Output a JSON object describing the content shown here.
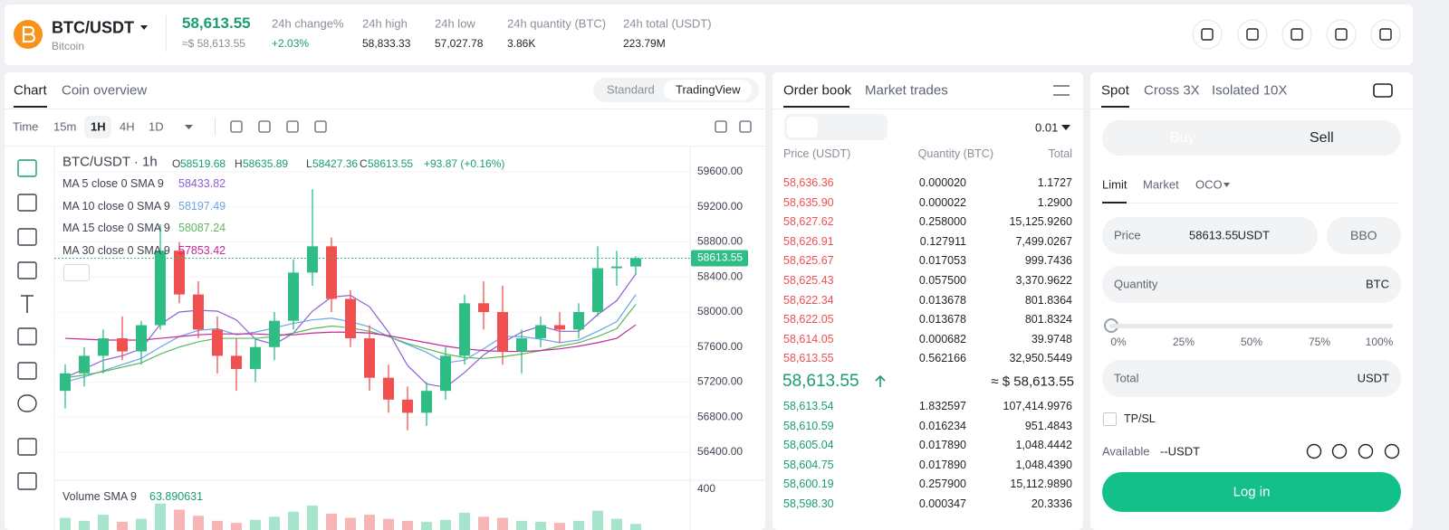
{
  "header": {
    "symbol": "BTC/USDT",
    "name": "Bitcoin",
    "price": "58,613.55",
    "price_usd": "≈$ 58,613.55",
    "stats": [
      {
        "label": "24h change%",
        "value": "+2.03%"
      },
      {
        "label": "24h high",
        "value": "58,833.33"
      },
      {
        "label": "24h low",
        "value": "57,027.78"
      },
      {
        "label": "24h quantity (BTC)",
        "value": "3.86K"
      },
      {
        "label": "24h total (USDT)",
        "value": "223.79M"
      }
    ]
  },
  "chart_panel": {
    "tabs": [
      "Chart",
      "Coin overview"
    ],
    "views": [
      "Standard",
      "TradingView"
    ],
    "intervals": [
      "Time",
      "15m",
      "1H",
      "4H",
      "1D"
    ],
    "legend_title": "BTC/USDT · 1h",
    "ohlc": [
      {
        "label": "O",
        "value": "58519.68"
      },
      {
        "label": "H",
        "value": "58635.89"
      },
      {
        "label": "L",
        "value": "58427.36"
      },
      {
        "label": "C",
        "value": "58613.55"
      }
    ],
    "change": "+93.87 (+0.16%)",
    "volume_label": "Volume SMA 9",
    "volume_value": "63.890631"
  },
  "chart_data": {
    "type": "candlestick",
    "ylim": [
      56090,
      59889
    ],
    "yticks": [
      {
        "value": 56400,
        "label": "56400.00"
      },
      {
        "value": 56800,
        "label": "56800.00"
      },
      {
        "value": 57200,
        "label": "57200.00"
      },
      {
        "value": 57600,
        "label": "57600.00"
      },
      {
        "value": 58000,
        "label": "58000.00"
      },
      {
        "value": 58400,
        "label": "58400.00"
      },
      {
        "value": 58800,
        "label": "58800.00"
      },
      {
        "value": 59200,
        "label": "59200.00"
      },
      {
        "value": 59600,
        "label": "59600.00"
      }
    ],
    "last_price": 58613.55,
    "up_color": "#2ebd85",
    "down_color": "#f0504f",
    "open": [
      57100,
      57300,
      57500,
      57700,
      57550,
      57850,
      58700,
      58200,
      57800,
      57500,
      57350,
      57600,
      57900,
      58450,
      58750,
      58150,
      57700,
      57250,
      57000,
      56850,
      57100,
      57500,
      58100,
      58000,
      57550,
      57700,
      57850,
      57800,
      58000,
      58500,
      58519.68
    ],
    "high": [
      57400,
      57600,
      57800,
      57950,
      57900,
      59000,
      58800,
      58350,
      57950,
      57700,
      57700,
      58000,
      58600,
      59400,
      58850,
      58250,
      57850,
      57400,
      57150,
      57200,
      57600,
      58200,
      58350,
      58300,
      57800,
      57950,
      58000,
      58100,
      58750,
      58700,
      58635.89
    ],
    "low": [
      56900,
      57150,
      57300,
      57450,
      57400,
      57800,
      58100,
      57700,
      57300,
      57100,
      57200,
      57450,
      57800,
      58300,
      58000,
      57600,
      57100,
      56850,
      56650,
      56700,
      57000,
      57400,
      57800,
      57400,
      57300,
      57600,
      57650,
      57700,
      57950,
      58300,
      58427.36
    ],
    "close": [
      57300,
      57500,
      57700,
      57550,
      57850,
      58700,
      58200,
      57800,
      57500,
      57350,
      57600,
      57900,
      58450,
      58750,
      58150,
      57700,
      57250,
      57000,
      56850,
      57100,
      57500,
      58100,
      58000,
      57550,
      57700,
      57850,
      57800,
      58000,
      58500,
      58519.68,
      58613.55
    ],
    "series": [
      {
        "name": "MA 5 close 0 SMA 9",
        "legend_value": "58433.82",
        "color": "#8b5fd8",
        "values": [
          57250,
          57350,
          57450,
          57500,
          57580,
          57860,
          58000,
          58020,
          58010,
          57910,
          57690,
          57630,
          57760,
          58010,
          58170,
          58190,
          58060,
          57770,
          57390,
          57180,
          57140,
          57310,
          57510,
          57650,
          57770,
          57840,
          57780,
          57780,
          57970,
          58130,
          58433.82
        ]
      },
      {
        "name": "MA 10 close 0 SMA 9",
        "legend_value": "58197.49",
        "color": "#6aa5e8",
        "values": [
          57200,
          57260,
          57330,
          57400,
          57470,
          57600,
          57720,
          57790,
          57810,
          57740,
          57770,
          57820,
          57870,
          57910,
          57930,
          57890,
          57830,
          57720,
          57630,
          57540,
          57420,
          57450,
          57580,
          57720,
          57720,
          57690,
          57650,
          57680,
          57780,
          57890,
          58197.49
        ]
      },
      {
        "name": "MA 15 close 0 SMA 9",
        "legend_value": "58087.24",
        "color": "#5cb85c",
        "values": [
          57250,
          57280,
          57320,
          57370,
          57420,
          57520,
          57600,
          57660,
          57700,
          57700,
          57700,
          57720,
          57760,
          57810,
          57840,
          57820,
          57780,
          57720,
          57640,
          57580,
          57520,
          57480,
          57470,
          57490,
          57520,
          57560,
          57610,
          57650,
          57720,
          57810,
          58087.24
        ]
      },
      {
        "name": "MA 30 close 0 SMA 9",
        "legend_value": "57853.42",
        "color": "#c4289a",
        "values": [
          57700,
          57690,
          57680,
          57680,
          57680,
          57700,
          57720,
          57740,
          57750,
          57750,
          57750,
          57740,
          57740,
          57760,
          57770,
          57770,
          57760,
          57730,
          57690,
          57650,
          57610,
          57580,
          57560,
          57550,
          57550,
          57560,
          57580,
          57610,
          57650,
          57700,
          57853.42
        ]
      }
    ],
    "volume": {
      "ylim": [
        0,
        480
      ],
      "yticks": [
        400
      ],
      "values": [
        120,
        90,
        150,
        80,
        110,
        260,
        200,
        140,
        90,
        70,
        100,
        130,
        180,
        240,
        160,
        120,
        150,
        110,
        90,
        80,
        100,
        170,
        130,
        120,
        90,
        80,
        70,
        90,
        190,
        110,
        60
      ]
    }
  },
  "order_book": {
    "tabs": [
      "Order book",
      "Market trades"
    ],
    "step": "0.01",
    "columns": [
      "Price (USDT)",
      "Quantity (BTC)",
      "Total"
    ],
    "asks": [
      [
        "58,636.36",
        "0.000020",
        "1.1727"
      ],
      [
        "58,635.90",
        "0.000022",
        "1.2900"
      ],
      [
        "58,627.62",
        "0.258000",
        "15,125.9260"
      ],
      [
        "58,626.91",
        "0.127911",
        "7,499.0267"
      ],
      [
        "58,625.67",
        "0.017053",
        "999.7436"
      ],
      [
        "58,625.43",
        "0.057500",
        "3,370.9622"
      ],
      [
        "58,622.34",
        "0.013678",
        "801.8364"
      ],
      [
        "58,622.05",
        "0.013678",
        "801.8324"
      ],
      [
        "58,614.05",
        "0.000682",
        "39.9748"
      ],
      [
        "58,613.55",
        "0.562166",
        "32,950.5449"
      ]
    ],
    "mid_price": "58,613.55",
    "mid_usd": "≈ $ 58,613.55",
    "bids": [
      [
        "58,613.54",
        "1.832597",
        "107,414.9976"
      ],
      [
        "58,610.59",
        "0.016234",
        "951.4843"
      ],
      [
        "58,605.04",
        "0.017890",
        "1,048.4442"
      ],
      [
        "58,604.75",
        "0.017890",
        "1,048.4390"
      ],
      [
        "58,600.19",
        "0.257900",
        "15,112.9890"
      ],
      [
        "58,598.30",
        "0.000347",
        "20.3336"
      ]
    ]
  },
  "trade": {
    "tabs": [
      "Spot",
      "Cross 3X",
      "Isolated 10X"
    ],
    "buy": "Buy",
    "sell": "Sell",
    "order_types": [
      "Limit",
      "Market",
      "OCO"
    ],
    "price_label": "Price",
    "price_value": "58613.55",
    "price_unit": "USDT",
    "bbo": "BBO",
    "quantity_label": "Quantity",
    "quantity_unit": "BTC",
    "slider": [
      "0%",
      "25%",
      "50%",
      "75%",
      "100%"
    ],
    "total_label": "Total",
    "total_unit": "USDT",
    "tpsl": "TP/SL",
    "available_label": "Available",
    "available_value": "--USDT",
    "login": "Log in"
  }
}
